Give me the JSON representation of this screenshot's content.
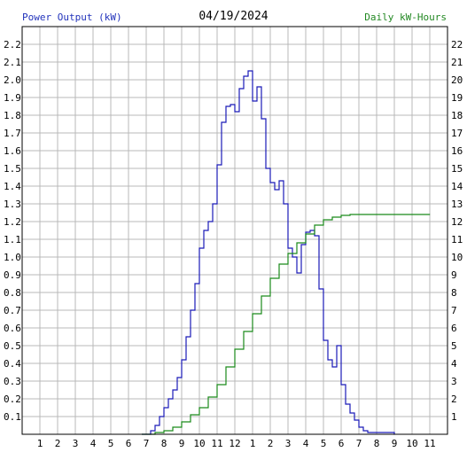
{
  "chart_data": {
    "type": "line",
    "title": "04/19/2024",
    "left_axis_label": "Power Output (kW)",
    "right_axis_label": "Daily kW-Hours",
    "x_tick_labels": [
      "1",
      "2",
      "3",
      "4",
      "5",
      "6",
      "7",
      "8",
      "9",
      "10",
      "11",
      "12",
      "1",
      "2",
      "3",
      "4",
      "5",
      "6",
      "7",
      "8",
      "9",
      "10",
      "11"
    ],
    "x_unit": "hour of day",
    "xlim": [
      0,
      24
    ],
    "ylim_left": [
      0,
      2.3
    ],
    "ylim_right": [
      0,
      23
    ],
    "y_ticks_left": [
      "0.1",
      "0.2",
      "0.3",
      "0.4",
      "0.5",
      "0.6",
      "0.7",
      "0.8",
      "0.9",
      "1.0",
      "1.1",
      "1.2",
      "1.3",
      "1.4",
      "1.5",
      "1.6",
      "1.7",
      "1.8",
      "1.9",
      "2.0",
      "2.1",
      "2.2"
    ],
    "y_ticks_right": [
      "1",
      "2",
      "3",
      "4",
      "5",
      "6",
      "7",
      "8",
      "9",
      "10",
      "11",
      "12",
      "13",
      "14",
      "15",
      "16",
      "17",
      "18",
      "19",
      "20",
      "21",
      "22"
    ],
    "grid": true,
    "colors": {
      "power": "#1a1ab8",
      "energy": "#1a8a1a",
      "grid": "#b8b8b8",
      "left_label": "#2233bb",
      "right_label": "#228822"
    },
    "series": [
      {
        "name": "Power Output (kW)",
        "axis": "left",
        "x": [
          6.75,
          7.25,
          7.5,
          7.75,
          8.0,
          8.25,
          8.5,
          8.75,
          9.0,
          9.25,
          9.5,
          9.75,
          10.0,
          10.25,
          10.5,
          10.75,
          11.0,
          11.25,
          11.5,
          11.75,
          12.0,
          12.25,
          12.5,
          12.75,
          13.0,
          13.25,
          13.5,
          13.75,
          14.0,
          14.25,
          14.5,
          14.75,
          15.0,
          15.25,
          15.5,
          15.75,
          16.0,
          16.25,
          16.5,
          16.75,
          17.0,
          17.25,
          17.5,
          17.75,
          18.0,
          18.25,
          18.5,
          18.75,
          19.0,
          19.25,
          19.5,
          19.75,
          20.0,
          20.5,
          21.0
        ],
        "y": [
          0,
          0.02,
          0.05,
          0.1,
          0.15,
          0.2,
          0.25,
          0.32,
          0.42,
          0.55,
          0.7,
          0.85,
          1.05,
          1.15,
          1.2,
          1.3,
          1.52,
          1.76,
          1.85,
          1.86,
          1.82,
          1.95,
          2.02,
          2.05,
          1.88,
          1.96,
          1.78,
          1.5,
          1.42,
          1.38,
          1.43,
          1.3,
          1.05,
          1.0,
          0.91,
          1.07,
          1.14,
          1.15,
          1.12,
          0.82,
          0.53,
          0.42,
          0.38,
          0.5,
          0.28,
          0.17,
          0.12,
          0.08,
          0.04,
          0.02,
          0.01,
          0.01,
          0.01,
          0.01,
          0
        ],
        "step": true
      },
      {
        "name": "Daily kW-Hours",
        "axis": "right",
        "x": [
          6.75,
          7.5,
          8.0,
          8.5,
          9.0,
          9.5,
          10.0,
          10.5,
          11.0,
          11.5,
          12.0,
          12.5,
          13.0,
          13.5,
          14.0,
          14.5,
          15.0,
          15.5,
          16.0,
          16.5,
          17.0,
          17.5,
          18.0,
          18.5,
          19.0,
          20.0,
          21.0,
          22.0,
          23.0
        ],
        "y": [
          0,
          0.1,
          0.2,
          0.4,
          0.7,
          1.1,
          1.5,
          2.1,
          2.8,
          3.8,
          4.8,
          5.8,
          6.8,
          7.8,
          8.8,
          9.6,
          10.2,
          10.8,
          11.3,
          11.8,
          12.1,
          12.25,
          12.35,
          12.4,
          12.4,
          12.4,
          12.4,
          12.4,
          12.4
        ],
        "step": true
      }
    ]
  }
}
